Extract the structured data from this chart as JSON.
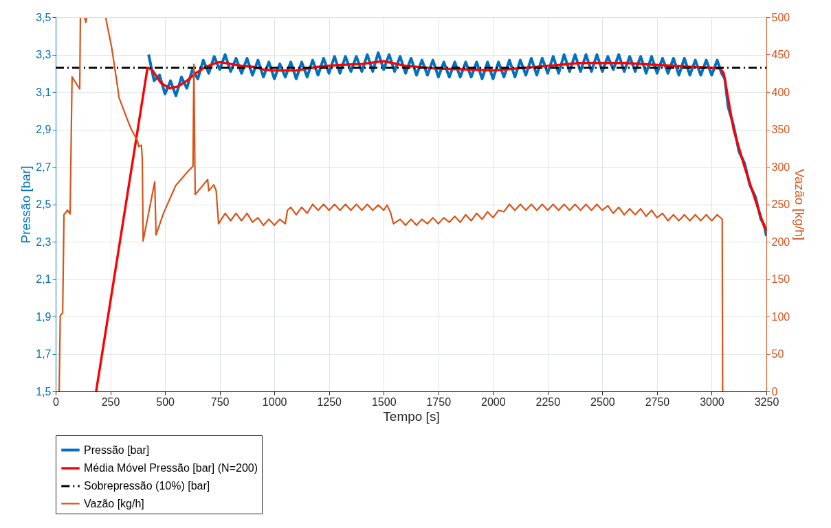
{
  "chart_data": {
    "type": "line",
    "xlabel": "Tempo [s]",
    "ylabel": "Pressão [bar]",
    "y2label": "Vazão [kg/h]",
    "xlim": [
      0,
      3250
    ],
    "xticks": [
      0,
      250,
      500,
      750,
      1000,
      1250,
      1500,
      1750,
      2000,
      2250,
      2500,
      2750,
      3000,
      3250
    ],
    "ylim": [
      1.5,
      3.5
    ],
    "yticks": [
      {
        "value": 1.5,
        "label": "1,5"
      },
      {
        "value": 1.7,
        "label": "1,7"
      },
      {
        "value": 1.9,
        "label": "1,9"
      },
      {
        "value": 2.1,
        "label": "2,1"
      },
      {
        "value": 2.3,
        "label": "2,3"
      },
      {
        "value": 2.5,
        "label": "2,5"
      },
      {
        "value": 2.7,
        "label": "2,7"
      },
      {
        "value": 2.9,
        "label": "2,9"
      },
      {
        "value": 3.1,
        "label": "3,1"
      },
      {
        "value": 3.3,
        "label": "3,3"
      },
      {
        "value": 3.5,
        "label": "3,5"
      }
    ],
    "y2lim": [
      0,
      500
    ],
    "y2ticks": [
      0,
      50,
      100,
      150,
      200,
      250,
      300,
      350,
      400,
      450,
      500
    ],
    "grid": true,
    "legend": "bottom",
    "line_style": "solid",
    "series": [
      {
        "name": "Pressão [bar]",
        "color": "#0072bd",
        "x": [
          425,
          450,
          475,
          500,
          525,
          550,
          575,
          600,
          625,
          650,
          675,
          700,
          725,
          750,
          775,
          800,
          825,
          850,
          875,
          900,
          925,
          950,
          975,
          1000,
          1025,
          1050,
          1075,
          1100,
          1125,
          1150,
          1175,
          1200,
          1225,
          1250,
          1275,
          1300,
          1325,
          1350,
          1375,
          1400,
          1425,
          1450,
          1475,
          1500,
          1525,
          1550,
          1575,
          1600,
          1625,
          1650,
          1675,
          1700,
          1725,
          1750,
          1775,
          1800,
          1825,
          1850,
          1875,
          1900,
          1925,
          1950,
          1975,
          2000,
          2025,
          2050,
          2075,
          2100,
          2125,
          2150,
          2175,
          2200,
          2225,
          2250,
          2275,
          2300,
          2325,
          2350,
          2375,
          2400,
          2425,
          2450,
          2475,
          2500,
          2525,
          2550,
          2575,
          2600,
          2625,
          2650,
          2675,
          2700,
          2725,
          2750,
          2775,
          2800,
          2825,
          2850,
          2875,
          2900,
          2925,
          2950,
          2975,
          3000,
          3025,
          3045,
          3060,
          3075,
          3100,
          3125,
          3150,
          3175,
          3200,
          3225,
          3240,
          3250
        ],
        "values": [
          3.3,
          3.16,
          3.19,
          3.09,
          3.16,
          3.08,
          3.18,
          3.12,
          3.22,
          3.17,
          3.27,
          3.2,
          3.29,
          3.22,
          3.3,
          3.21,
          3.28,
          3.2,
          3.28,
          3.19,
          3.27,
          3.18,
          3.26,
          3.17,
          3.25,
          3.18,
          3.26,
          3.17,
          3.26,
          3.18,
          3.27,
          3.19,
          3.28,
          3.2,
          3.29,
          3.2,
          3.29,
          3.21,
          3.29,
          3.21,
          3.3,
          3.21,
          3.31,
          3.22,
          3.3,
          3.21,
          3.29,
          3.2,
          3.28,
          3.19,
          3.27,
          3.19,
          3.27,
          3.18,
          3.26,
          3.18,
          3.26,
          3.18,
          3.26,
          3.18,
          3.26,
          3.17,
          3.26,
          3.17,
          3.26,
          3.18,
          3.27,
          3.18,
          3.27,
          3.19,
          3.28,
          3.19,
          3.28,
          3.2,
          3.29,
          3.2,
          3.3,
          3.21,
          3.3,
          3.21,
          3.3,
          3.21,
          3.3,
          3.21,
          3.29,
          3.22,
          3.3,
          3.21,
          3.29,
          3.21,
          3.29,
          3.2,
          3.29,
          3.2,
          3.28,
          3.2,
          3.28,
          3.19,
          3.28,
          3.19,
          3.27,
          3.19,
          3.27,
          3.19,
          3.27,
          3.2,
          3.17,
          3.02,
          2.92,
          2.78,
          2.72,
          2.6,
          2.54,
          2.42,
          2.39,
          2.33
        ]
      },
      {
        "name": "Média Móvel Pressão [bar] (N=200)",
        "color": "#ff0000",
        "x": [
          185,
          420,
          440,
          480,
          520,
          560,
          600,
          640,
          680,
          720,
          750,
          800,
          850,
          900,
          950,
          1000,
          1100,
          1200,
          1300,
          1400,
          1500,
          1600,
          1750,
          1900,
          2000,
          2100,
          2250,
          2400,
          2600,
          2750,
          2900,
          3000,
          3040,
          3055,
          3100,
          3150,
          3200,
          3240,
          3250
        ],
        "values": [
          1.5,
          3.23,
          3.22,
          3.15,
          3.12,
          3.13,
          3.16,
          3.2,
          3.23,
          3.25,
          3.26,
          3.25,
          3.24,
          3.235,
          3.22,
          3.215,
          3.215,
          3.235,
          3.245,
          3.25,
          3.265,
          3.24,
          3.225,
          3.22,
          3.215,
          3.225,
          3.24,
          3.255,
          3.255,
          3.245,
          3.235,
          3.23,
          3.225,
          3.2,
          2.9,
          2.7,
          2.52,
          2.38,
          2.36
        ]
      },
      {
        "name": "Sobrepressão (10%) [bar]",
        "color": "#000000",
        "line_style": "dashed",
        "x": [
          0,
          3250
        ],
        "values": [
          3.23,
          3.23
        ]
      },
      {
        "name": "Vazão [kg/h]",
        "color": "#d95319",
        "axis": "y2",
        "x": [
          16,
          21,
          32,
          38,
          54,
          66,
          75,
          110,
          113,
          118,
          133,
          138,
          142,
          150,
          229,
          257,
          285,
          289,
          324,
          346,
          374,
          380,
          392,
          396,
          400,
          453,
          459,
          493,
          549,
          605,
          628,
          632,
          638,
          695,
          700,
          723,
          734,
          745,
          775,
          800,
          825,
          850,
          875,
          900,
          925,
          950,
          975,
          1000,
          1025,
          1050,
          1060,
          1075,
          1100,
          1125,
          1150,
          1175,
          1200,
          1225,
          1250,
          1275,
          1300,
          1325,
          1350,
          1375,
          1400,
          1425,
          1450,
          1475,
          1500,
          1515,
          1530,
          1545,
          1575,
          1600,
          1625,
          1650,
          1675,
          1700,
          1725,
          1750,
          1775,
          1800,
          1825,
          1850,
          1875,
          1900,
          1925,
          1950,
          1975,
          2000,
          2025,
          2050,
          2075,
          2100,
          2125,
          2150,
          2175,
          2200,
          2225,
          2250,
          2275,
          2300,
          2325,
          2350,
          2375,
          2400,
          2425,
          2450,
          2475,
          2500,
          2525,
          2550,
          2575,
          2600,
          2625,
          2650,
          2675,
          2700,
          2725,
          2750,
          2775,
          2800,
          2825,
          2850,
          2875,
          2900,
          2925,
          2950,
          2975,
          3000,
          3025,
          3048,
          3050
        ],
        "values": [
          0,
          101,
          105,
          236,
          242,
          237,
          420,
          404,
          499,
          null,
          499,
          493,
          499,
          null,
          499,
          458,
          403,
          393,
          366,
          350,
          335,
          327,
          329,
          311,
          201,
          280,
          209,
          238,
          275,
          294,
          301,
          437,
          263,
          283,
          268,
          276,
          268,
          224,
          238,
          228,
          238,
          228,
          238,
          226,
          232,
          222,
          230,
          222,
          230,
          224,
          242,
          246,
          236,
          246,
          238,
          250,
          242,
          250,
          242,
          250,
          242,
          250,
          242,
          250,
          242,
          250,
          242,
          249,
          242,
          249,
          240,
          224,
          230,
          222,
          230,
          222,
          230,
          224,
          232,
          224,
          232,
          226,
          234,
          226,
          236,
          228,
          238,
          230,
          240,
          232,
          242,
          240,
          250,
          242,
          250,
          242,
          250,
          242,
          250,
          242,
          250,
          242,
          250,
          242,
          250,
          242,
          250,
          242,
          250,
          242,
          248,
          238,
          246,
          236,
          244,
          236,
          244,
          234,
          242,
          232,
          238,
          228,
          236,
          228,
          236,
          228,
          236,
          228,
          236,
          228,
          236,
          230,
          0
        ]
      }
    ]
  }
}
